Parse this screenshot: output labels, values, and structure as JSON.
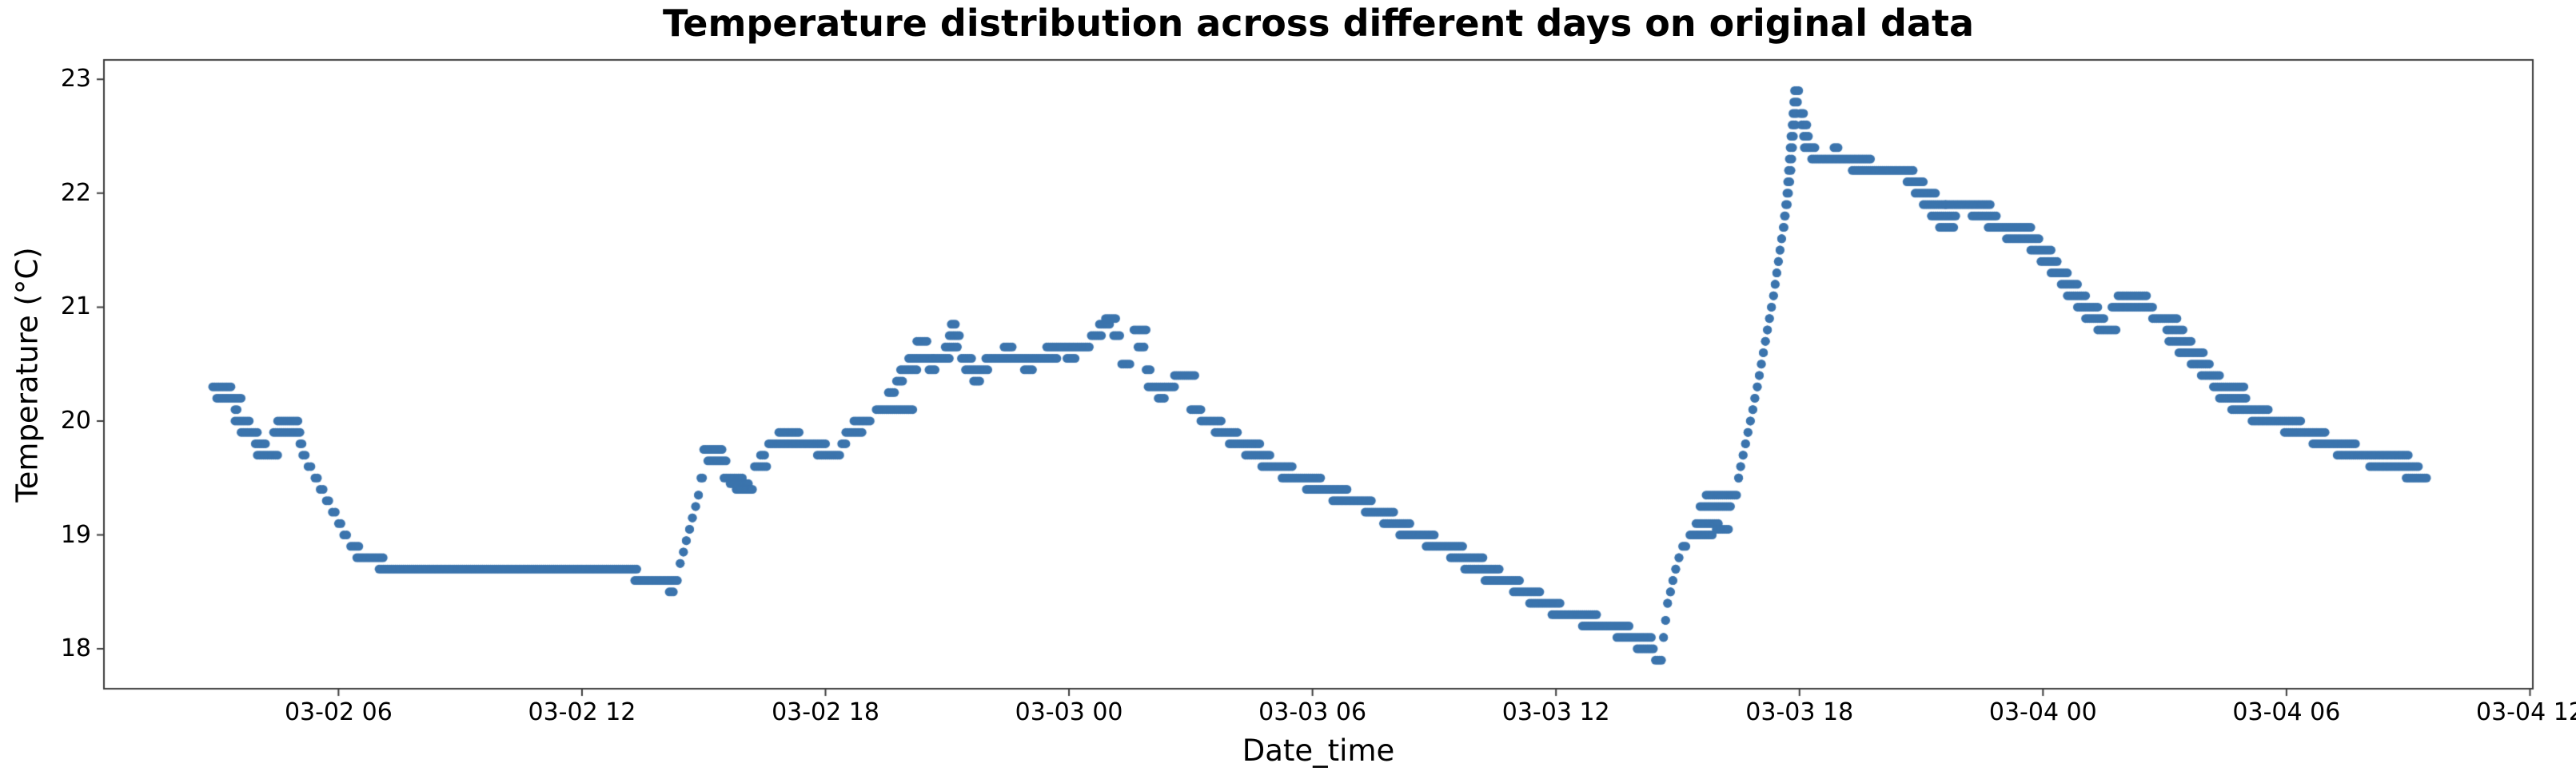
{
  "chart_data": {
    "type": "scatter",
    "title": "Temperature distribution across different days on original data",
    "xlabel": "Date_time",
    "ylabel": "Temperature (°C)",
    "legend": null,
    "grid": false,
    "marker_color": "#3b74ad",
    "marker_radius": 5.5,
    "axis_color": "#3b3b3b",
    "xlim_hours": [
      0.22,
      60.07
    ],
    "ylim": [
      17.65,
      23.17
    ],
    "x_ticks": [
      {
        "label": "03-02 06",
        "hour": 6
      },
      {
        "label": "03-02 12",
        "hour": 12
      },
      {
        "label": "03-02 18",
        "hour": 18
      },
      {
        "label": "03-03 00",
        "hour": 24
      },
      {
        "label": "03-03 06",
        "hour": 30
      },
      {
        "label": "03-03 12",
        "hour": 36
      },
      {
        "label": "03-03 18",
        "hour": 42
      },
      {
        "label": "03-04 00",
        "hour": 48
      },
      {
        "label": "03-04 06",
        "hour": 54
      },
      {
        "label": "03-04 12",
        "hour": 60
      }
    ],
    "y_ticks": [
      18,
      19,
      20,
      21,
      22,
      23
    ],
    "dot_interval_hours": 0.05,
    "time_origin": "03-02 00:00",
    "segments": [
      [
        2.9,
        3.35,
        20.3
      ],
      [
        3.0,
        3.6,
        20.2
      ],
      [
        3.45,
        3.5,
        20.1
      ],
      [
        3.45,
        3.8,
        20.0
      ],
      [
        3.6,
        4.0,
        19.9
      ],
      [
        3.95,
        4.2,
        19.8
      ],
      [
        4.0,
        4.5,
        19.7
      ],
      [
        4.4,
        5.05,
        19.9
      ],
      [
        4.5,
        5.0,
        20.0
      ],
      [
        5.05,
        5.1,
        19.8
      ],
      [
        5.12,
        5.18,
        19.7
      ],
      [
        5.25,
        5.32,
        19.6
      ],
      [
        5.42,
        5.48,
        19.5
      ],
      [
        5.55,
        5.62,
        19.4
      ],
      [
        5.7,
        5.76,
        19.3
      ],
      [
        5.85,
        5.92,
        19.2
      ],
      [
        6.0,
        6.06,
        19.1
      ],
      [
        6.13,
        6.2,
        19.0
      ],
      [
        6.3,
        6.5,
        18.9
      ],
      [
        6.45,
        7.1,
        18.8
      ],
      [
        7.0,
        13.35,
        18.7
      ],
      [
        13.3,
        14.35,
        18.6
      ],
      [
        14.15,
        14.25,
        18.5
      ],
      [
        14.42,
        14.42,
        18.75
      ],
      [
        14.5,
        14.5,
        18.85
      ],
      [
        14.57,
        14.57,
        18.95
      ],
      [
        14.65,
        14.65,
        19.05
      ],
      [
        14.72,
        14.72,
        19.15
      ],
      [
        14.8,
        14.8,
        19.25
      ],
      [
        14.87,
        14.87,
        19.35
      ],
      [
        14.93,
        14.97,
        19.5
      ],
      [
        15.0,
        15.45,
        19.75
      ],
      [
        15.1,
        15.55,
        19.65
      ],
      [
        15.5,
        15.95,
        19.5
      ],
      [
        15.65,
        16.1,
        19.45
      ],
      [
        15.8,
        16.2,
        19.4
      ],
      [
        16.25,
        16.55,
        19.6
      ],
      [
        16.4,
        16.5,
        19.7
      ],
      [
        16.6,
        17.1,
        19.8
      ],
      [
        16.85,
        17.35,
        19.9
      ],
      [
        17.15,
        18.0,
        19.8
      ],
      [
        17.8,
        18.35,
        19.7
      ],
      [
        18.4,
        18.5,
        19.8
      ],
      [
        18.5,
        18.9,
        19.9
      ],
      [
        18.7,
        19.1,
        20.0
      ],
      [
        19.25,
        20.15,
        20.1
      ],
      [
        19.55,
        19.7,
        20.25
      ],
      [
        19.75,
        19.9,
        20.35
      ],
      [
        19.85,
        20.25,
        20.45
      ],
      [
        20.05,
        20.65,
        20.55
      ],
      [
        20.25,
        20.5,
        20.7
      ],
      [
        20.55,
        20.7,
        20.45
      ],
      [
        20.65,
        21.05,
        20.55
      ],
      [
        20.95,
        21.25,
        20.65
      ],
      [
        21.05,
        21.3,
        20.75
      ],
      [
        21.1,
        21.2,
        20.85
      ],
      [
        21.35,
        21.6,
        20.55
      ],
      [
        21.45,
        22.0,
        20.45
      ],
      [
        21.65,
        21.8,
        20.35
      ],
      [
        21.95,
        22.5,
        20.55
      ],
      [
        22.4,
        22.6,
        20.65
      ],
      [
        22.55,
        23.05,
        20.55
      ],
      [
        22.9,
        23.1,
        20.45
      ],
      [
        23.1,
        23.7,
        20.55
      ],
      [
        23.45,
        24.5,
        20.65
      ],
      [
        23.95,
        24.15,
        20.55
      ],
      [
        24.55,
        24.8,
        20.75
      ],
      [
        24.75,
        25.0,
        20.85
      ],
      [
        24.9,
        25.15,
        20.9
      ],
      [
        25.1,
        25.25,
        20.75
      ],
      [
        25.3,
        25.5,
        20.5
      ],
      [
        25.6,
        25.9,
        20.8
      ],
      [
        25.7,
        25.85,
        20.65
      ],
      [
        25.9,
        26.0,
        20.45
      ],
      [
        25.95,
        26.6,
        20.3
      ],
      [
        26.2,
        26.35,
        20.2
      ],
      [
        26.6,
        27.1,
        20.4
      ],
      [
        27.0,
        27.25,
        20.1
      ],
      [
        27.25,
        27.75,
        20.0
      ],
      [
        27.6,
        28.15,
        19.9
      ],
      [
        27.95,
        28.7,
        19.8
      ],
      [
        28.35,
        28.95,
        19.7
      ],
      [
        28.75,
        29.5,
        19.6
      ],
      [
        29.25,
        30.2,
        19.5
      ],
      [
        29.85,
        30.85,
        19.4
      ],
      [
        30.5,
        31.45,
        19.3
      ],
      [
        31.3,
        32.0,
        19.2
      ],
      [
        31.75,
        32.4,
        19.1
      ],
      [
        32.15,
        33.0,
        19.0
      ],
      [
        32.8,
        33.7,
        18.9
      ],
      [
        33.4,
        34.2,
        18.8
      ],
      [
        33.75,
        34.6,
        18.7
      ],
      [
        34.25,
        35.1,
        18.6
      ],
      [
        34.95,
        35.6,
        18.5
      ],
      [
        35.35,
        36.1,
        18.4
      ],
      [
        35.9,
        37.0,
        18.3
      ],
      [
        36.65,
        37.8,
        18.2
      ],
      [
        37.5,
        38.35,
        18.1
      ],
      [
        38.0,
        38.4,
        18.0
      ],
      [
        38.45,
        38.6,
        17.9
      ],
      [
        38.65,
        38.65,
        18.1
      ],
      [
        38.7,
        38.7,
        18.25
      ],
      [
        38.75,
        38.75,
        18.4
      ],
      [
        38.82,
        38.82,
        18.5
      ],
      [
        38.88,
        38.88,
        18.6
      ],
      [
        38.95,
        38.95,
        18.7
      ],
      [
        39.03,
        39.03,
        18.8
      ],
      [
        39.12,
        39.2,
        18.9
      ],
      [
        39.3,
        39.85,
        19.0
      ],
      [
        39.45,
        40.0,
        19.1
      ],
      [
        39.55,
        40.3,
        19.25
      ],
      [
        39.7,
        40.45,
        19.35
      ],
      [
        39.95,
        40.25,
        19.05
      ],
      [
        40.5,
        40.5,
        19.5
      ],
      [
        40.55,
        40.55,
        19.6
      ],
      [
        40.61,
        40.61,
        19.7
      ],
      [
        40.67,
        40.67,
        19.8
      ],
      [
        40.73,
        40.73,
        19.9
      ],
      [
        40.79,
        40.79,
        20.0
      ],
      [
        40.85,
        40.85,
        20.1
      ],
      [
        40.9,
        40.9,
        20.2
      ],
      [
        40.96,
        40.96,
        20.3
      ],
      [
        41.01,
        41.01,
        20.4
      ],
      [
        41.06,
        41.06,
        20.5
      ],
      [
        41.11,
        41.11,
        20.6
      ],
      [
        41.16,
        41.16,
        20.7
      ],
      [
        41.21,
        41.21,
        20.8
      ],
      [
        41.26,
        41.26,
        20.9
      ],
      [
        41.31,
        41.31,
        21.0
      ],
      [
        41.36,
        41.36,
        21.1
      ],
      [
        41.4,
        41.4,
        21.2
      ],
      [
        41.44,
        41.44,
        21.3
      ],
      [
        41.48,
        41.48,
        21.4
      ],
      [
        41.52,
        41.52,
        21.5
      ],
      [
        41.56,
        41.56,
        21.6
      ],
      [
        41.6,
        41.62,
        21.7
      ],
      [
        41.63,
        41.65,
        21.8
      ],
      [
        41.66,
        41.7,
        21.9
      ],
      [
        41.69,
        41.73,
        22.0
      ],
      [
        41.71,
        41.76,
        22.1
      ],
      [
        41.73,
        41.79,
        22.2
      ],
      [
        41.75,
        41.81,
        22.3
      ],
      [
        41.77,
        41.83,
        22.4
      ],
      [
        41.79,
        41.85,
        22.5
      ],
      [
        41.82,
        41.9,
        22.6
      ],
      [
        41.84,
        41.93,
        22.7
      ],
      [
        41.86,
        41.95,
        22.8
      ],
      [
        41.88,
        41.98,
        22.9
      ],
      [
        42.02,
        42.1,
        22.7
      ],
      [
        42.05,
        42.18,
        22.6
      ],
      [
        42.1,
        42.22,
        22.5
      ],
      [
        42.12,
        42.38,
        22.4
      ],
      [
        42.3,
        43.75,
        22.3
      ],
      [
        42.85,
        42.95,
        22.4
      ],
      [
        43.3,
        44.8,
        22.2
      ],
      [
        44.65,
        45.05,
        22.1
      ],
      [
        44.85,
        45.35,
        22.0
      ],
      [
        45.05,
        45.6,
        21.9
      ],
      [
        45.25,
        45.85,
        21.8
      ],
      [
        45.45,
        45.8,
        21.7
      ],
      [
        45.6,
        46.7,
        21.9
      ],
      [
        46.25,
        46.85,
        21.8
      ],
      [
        46.65,
        47.7,
        21.7
      ],
      [
        47.1,
        47.9,
        21.6
      ],
      [
        47.7,
        48.2,
        21.5
      ],
      [
        47.95,
        48.35,
        21.4
      ],
      [
        48.2,
        48.6,
        21.3
      ],
      [
        48.45,
        48.85,
        21.2
      ],
      [
        48.6,
        49.05,
        21.1
      ],
      [
        48.85,
        49.35,
        21.0
      ],
      [
        49.05,
        49.5,
        20.9
      ],
      [
        49.35,
        49.8,
        20.8
      ],
      [
        49.7,
        50.7,
        21.0
      ],
      [
        49.85,
        50.55,
        21.1
      ],
      [
        50.7,
        51.3,
        20.9
      ],
      [
        51.05,
        51.45,
        20.8
      ],
      [
        51.1,
        51.65,
        20.7
      ],
      [
        51.35,
        51.95,
        20.6
      ],
      [
        51.65,
        52.1,
        20.5
      ],
      [
        51.9,
        52.35,
        20.4
      ],
      [
        52.2,
        52.95,
        20.3
      ],
      [
        52.35,
        53.0,
        20.2
      ],
      [
        52.65,
        53.55,
        20.1
      ],
      [
        53.15,
        54.35,
        20.0
      ],
      [
        53.95,
        54.95,
        19.9
      ],
      [
        54.65,
        55.7,
        19.8
      ],
      [
        55.25,
        57.0,
        19.7
      ],
      [
        56.05,
        57.25,
        19.6
      ],
      [
        56.95,
        57.45,
        19.5
      ]
    ]
  }
}
